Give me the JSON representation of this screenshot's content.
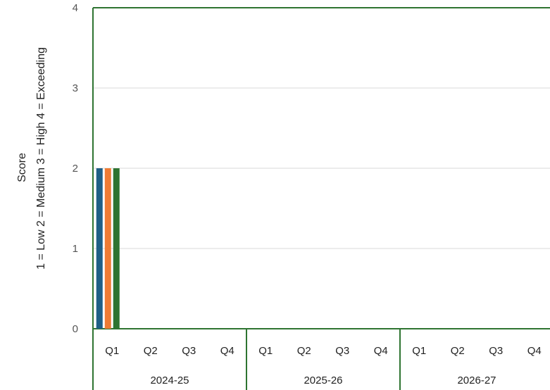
{
  "chart_data": {
    "type": "bar",
    "title": "",
    "ylabel_lines": [
      "Score",
      "1 = Low  2 = Medium  3 = High 4 = Exceeding"
    ],
    "ylim": [
      0,
      4
    ],
    "yticks": [
      "0",
      "1",
      "2",
      "3",
      "4"
    ],
    "grid": true,
    "groups": [
      {
        "label": "2024-25",
        "categories": [
          "Q1",
          "Q2",
          "Q3",
          "Q4"
        ]
      },
      {
        "label": "2025-26",
        "categories": [
          "Q1",
          "Q2",
          "Q3",
          "Q4"
        ]
      },
      {
        "label": "2026-27",
        "categories": [
          "Q1",
          "Q2",
          "Q3",
          "Q4"
        ]
      }
    ],
    "series": [
      {
        "color": "#1f5f86",
        "values": [
          2,
          null,
          null,
          null,
          null,
          null,
          null,
          null,
          null,
          null,
          null,
          null
        ]
      },
      {
        "color": "#ef7b33",
        "values": [
          2,
          null,
          null,
          null,
          null,
          null,
          null,
          null,
          null,
          null,
          null,
          null
        ]
      },
      {
        "color": "#2e7431",
        "values": [
          2,
          null,
          null,
          null,
          null,
          null,
          null,
          null,
          null,
          null,
          null,
          null
        ]
      }
    ],
    "colors": {
      "frame": "#2e7431",
      "grid": "#d9d9d9"
    }
  }
}
